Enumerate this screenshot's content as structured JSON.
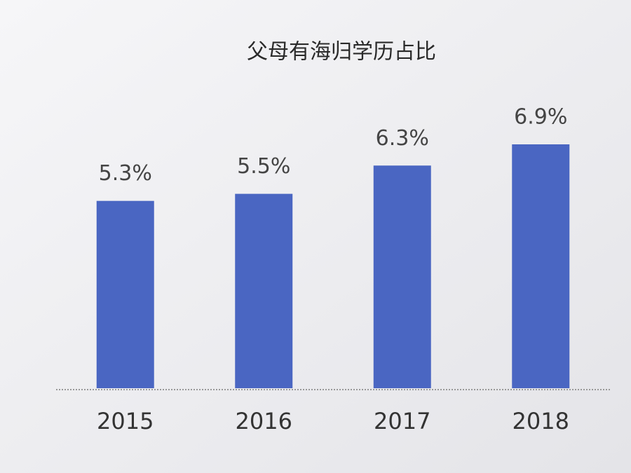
{
  "chart_data": {
    "type": "bar",
    "title": "父母有海归学历占比",
    "categories": [
      "2015",
      "2016",
      "2017",
      "2018"
    ],
    "values": [
      5.3,
      5.5,
      6.3,
      6.9
    ],
    "value_labels": [
      "5.3%",
      "5.5%",
      "6.3%",
      "6.9%"
    ],
    "color": "#4a66c2"
  }
}
